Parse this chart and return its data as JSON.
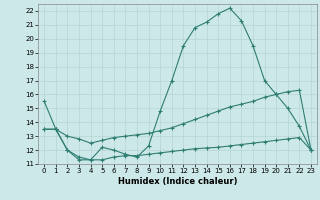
{
  "title": "",
  "xlabel": "Humidex (Indice chaleur)",
  "xlim": [
    -0.5,
    23.5
  ],
  "ylim": [
    11,
    22.5
  ],
  "yticks": [
    11,
    12,
    13,
    14,
    15,
    16,
    17,
    18,
    19,
    20,
    21,
    22
  ],
  "xticks": [
    0,
    1,
    2,
    3,
    4,
    5,
    6,
    7,
    8,
    9,
    10,
    11,
    12,
    13,
    14,
    15,
    16,
    17,
    18,
    19,
    20,
    21,
    22,
    23
  ],
  "bg_color": "#cde8e8",
  "line_color": "#2e7d72",
  "line1_x": [
    0,
    1,
    2,
    3,
    4,
    5,
    6,
    7,
    8,
    9,
    10,
    11,
    12,
    13,
    14,
    15,
    16,
    17,
    18,
    19,
    20,
    21,
    22,
    23
  ],
  "line1_y": [
    15.5,
    13.5,
    12.0,
    11.3,
    11.3,
    12.2,
    12.0,
    11.7,
    11.5,
    12.3,
    14.8,
    17.0,
    19.5,
    20.8,
    21.2,
    21.8,
    22.2,
    21.3,
    19.5,
    17.0,
    16.0,
    15.0,
    13.7,
    12.0
  ],
  "line2_x": [
    0,
    1,
    2,
    3,
    4,
    5,
    6,
    7,
    8,
    9,
    10,
    11,
    12,
    13,
    14,
    15,
    16,
    17,
    18,
    19,
    20,
    21,
    22,
    23
  ],
  "line2_y": [
    13.5,
    13.5,
    13.0,
    12.8,
    12.5,
    12.7,
    12.9,
    13.0,
    13.1,
    13.2,
    13.4,
    13.6,
    13.9,
    14.2,
    14.5,
    14.8,
    15.1,
    15.3,
    15.5,
    15.8,
    16.0,
    16.2,
    16.3,
    12.0
  ],
  "line3_x": [
    0,
    1,
    2,
    3,
    4,
    5,
    6,
    7,
    8,
    9,
    10,
    11,
    12,
    13,
    14,
    15,
    16,
    17,
    18,
    19,
    20,
    21,
    22,
    23
  ],
  "line3_y": [
    13.5,
    13.5,
    12.0,
    11.5,
    11.3,
    11.3,
    11.5,
    11.6,
    11.6,
    11.7,
    11.8,
    11.9,
    12.0,
    12.1,
    12.15,
    12.2,
    12.3,
    12.4,
    12.5,
    12.6,
    12.7,
    12.8,
    12.9,
    12.0
  ]
}
